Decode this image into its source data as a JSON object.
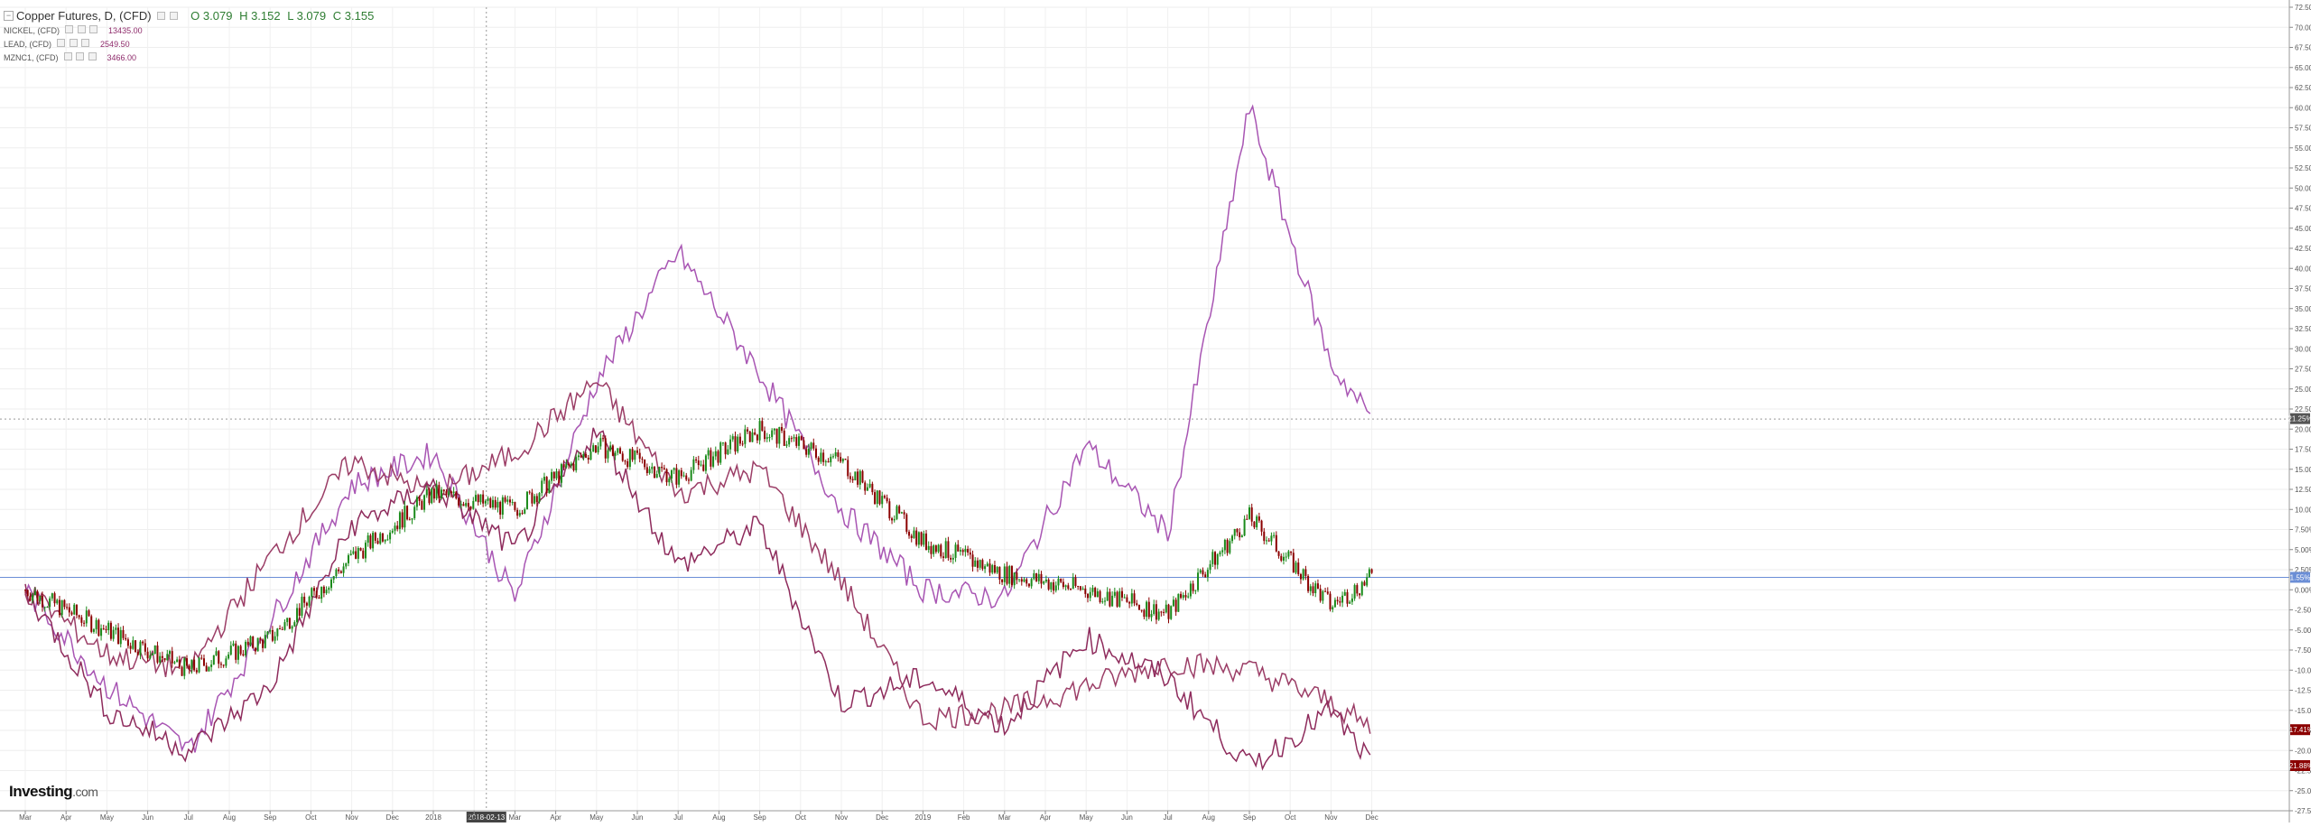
{
  "header": {
    "title": "Copper Futures, D, (CFD)",
    "ohlc": {
      "open": "O 3.079",
      "high": "H 3.152",
      "low": "L 3.079",
      "close": "C 3.155"
    }
  },
  "comparisons": [
    {
      "name": "NICKEL, (CFD)",
      "value": "13435.00"
    },
    {
      "name": "LEAD, (CFD)",
      "value": "2549.50"
    },
    {
      "name": "MZNC1, (CFD)",
      "value": "3466.00"
    }
  ],
  "logo": {
    "text": "Investing",
    "tld": ".com"
  },
  "colors": {
    "up": "#1a8a1a",
    "down": "#8b0000",
    "nickel": "#a855b3",
    "lead": "#9b3d66",
    "zinc": "#8e2b5c",
    "baseline": "#6b8ed6"
  },
  "chart_data": {
    "type": "line",
    "x_axis": {
      "ticks": [
        "Mar",
        "Apr",
        "May",
        "Jun",
        "Jul",
        "Aug",
        "Sep",
        "Oct",
        "Nov",
        "Dec",
        "2018",
        "Feb",
        "Mar",
        "Apr",
        "May",
        "Jun",
        "Jul",
        "Aug",
        "Sep",
        "Oct",
        "Nov",
        "Dec",
        "2019",
        "Feb",
        "Mar",
        "Apr",
        "May",
        "Jun",
        "Jul",
        "Aug",
        "Sep",
        "Oct",
        "Nov",
        "Dec"
      ],
      "crosshair_label": "2018-02-13"
    },
    "y_axis": {
      "unit": "%",
      "range": [
        -27.5,
        72.5
      ],
      "ticks": [
        "72.50%",
        "70.00%",
        "67.50%",
        "65.00%",
        "62.50%",
        "60.00%",
        "57.50%",
        "55.00%",
        "52.50%",
        "50.00%",
        "47.50%",
        "45.00%",
        "42.50%",
        "40.00%",
        "37.50%",
        "35.00%",
        "32.50%",
        "30.00%",
        "27.50%",
        "25.00%",
        "22.50%",
        "20.00%",
        "17.50%",
        "15.00%",
        "12.50%",
        "10.00%",
        "7.50%",
        "5.00%",
        "2.50%",
        "0.00%",
        "-2.50%",
        "-5.00%",
        "-7.50%",
        "-10.00%",
        "-12.50%",
        "-15.00%",
        "-17.50%",
        "-20.00%",
        "-22.50%",
        "-25.00%",
        "-27.50%"
      ]
    },
    "series": [
      {
        "name": "Copper Futures, D, (CFD)",
        "kind": "candlestick",
        "x": [
          0,
          2,
          4,
          6,
          8,
          10,
          12,
          14,
          16,
          18,
          20,
          22,
          24,
          26,
          28,
          30,
          32,
          33
        ],
        "values": [
          0,
          -5,
          -10,
          -6,
          4,
          12,
          10,
          18,
          14,
          20,
          16,
          6,
          2,
          0,
          -3,
          9,
          -2,
          1.55
        ],
        "last_label": "1.55%"
      },
      {
        "name": "NICKEL, (CFD)",
        "kind": "line",
        "x": [
          0,
          2,
          4,
          6,
          8,
          10,
          12,
          14,
          16,
          18,
          20,
          22,
          24,
          26,
          28,
          30,
          32,
          33
        ],
        "values": [
          0,
          -12,
          -20,
          -4,
          13,
          17,
          -1,
          26,
          42,
          27,
          10,
          0,
          -1,
          18,
          7,
          60,
          28,
          21.3
        ],
        "last_label": "21.25%"
      },
      {
        "name": "LEAD, (CFD)",
        "kind": "line",
        "x": [
          0,
          2,
          4,
          6,
          8,
          10,
          12,
          14,
          16,
          18,
          20,
          22,
          24,
          26,
          28,
          30,
          32,
          33
        ],
        "values": [
          0,
          -8,
          -10,
          4,
          16,
          12,
          17,
          26,
          12,
          15,
          1,
          -16,
          -15,
          -12,
          -9,
          -10,
          -14,
          -17.41
        ],
        "last_label": "-17.41%"
      },
      {
        "name": "MZNC1, (CFD)",
        "kind": "line",
        "x": [
          0,
          2,
          4,
          6,
          8,
          10,
          12,
          14,
          16,
          18,
          20,
          22,
          24,
          26,
          28,
          30,
          32,
          33
        ],
        "values": [
          0,
          -15,
          -20,
          -12,
          8,
          13,
          5,
          20,
          3,
          8,
          -14,
          -11,
          -17,
          -6,
          -11,
          -22,
          -15,
          -21.88
        ],
        "last_label": "-21.88%"
      }
    ],
    "reference_lines": [
      {
        "value": 1.55,
        "label": "1.55%"
      },
      {
        "value": 21.25,
        "label": "21.25%"
      }
    ],
    "grid": true
  }
}
